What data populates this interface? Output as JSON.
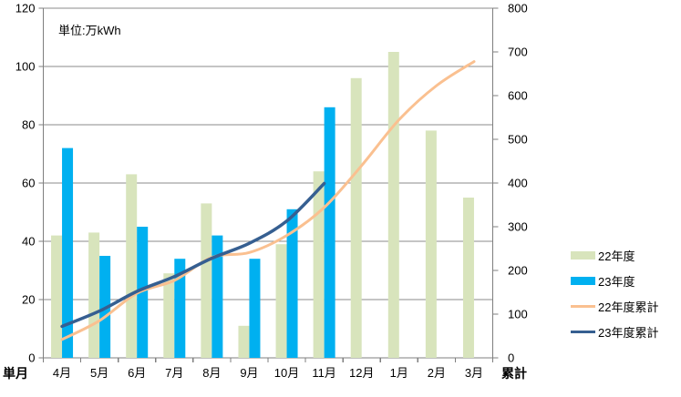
{
  "annotation": {
    "unit": "単位:万kWh"
  },
  "corner_labels": {
    "bottom_left": "単月",
    "bottom_right": "累計"
  },
  "legend": {
    "position": "right",
    "items": [
      {
        "label": "22年度",
        "swatch": "bar",
        "color": "#D8E4BC"
      },
      {
        "label": "23年度",
        "swatch": "bar",
        "color": "#00B0F0"
      },
      {
        "label": "22年度累計",
        "swatch": "line",
        "color": "#FAC090"
      },
      {
        "label": "23年度累計",
        "swatch": "line",
        "color": "#365F91"
      }
    ]
  },
  "chart_data": {
    "type": "bar+line",
    "title": "",
    "unit": "万kWh",
    "categories": [
      "4月",
      "5月",
      "6月",
      "7月",
      "8月",
      "9月",
      "10月",
      "11月",
      "12月",
      "1月",
      "2月",
      "3月"
    ],
    "left_axis": {
      "label": "単月",
      "min": 0,
      "max": 120,
      "step": 20
    },
    "right_axis": {
      "label": "累計",
      "min": 0,
      "max": 800,
      "step": 100
    },
    "grid": true,
    "grid_color": "#8B8B8B",
    "axis_color": "#7F7F7F",
    "text_color": "#000000",
    "legend_position": "right",
    "series": [
      {
        "name": "22年度",
        "type": "bar",
        "axis": "left",
        "color": "#D8E4BC",
        "values": [
          42,
          43,
          63,
          29,
          53,
          11,
          39,
          64,
          96,
          105,
          78,
          55
        ]
      },
      {
        "name": "23年度",
        "type": "bar",
        "axis": "left",
        "color": "#00B0F0",
        "values": [
          72,
          35,
          45,
          34,
          42,
          34,
          51,
          86,
          null,
          null,
          null,
          null
        ]
      },
      {
        "name": "22年度累計",
        "type": "line",
        "axis": "right",
        "color": "#FAC090",
        "values": [
          42,
          85,
          148,
          177,
          230,
          241,
          280,
          344,
          440,
          545,
          623,
          678
        ]
      },
      {
        "name": "23年度累計",
        "type": "line",
        "axis": "right",
        "color": "#365F91",
        "values": [
          72,
          107,
          152,
          186,
          228,
          262,
          313,
          399,
          null,
          null,
          null,
          null
        ]
      }
    ]
  }
}
